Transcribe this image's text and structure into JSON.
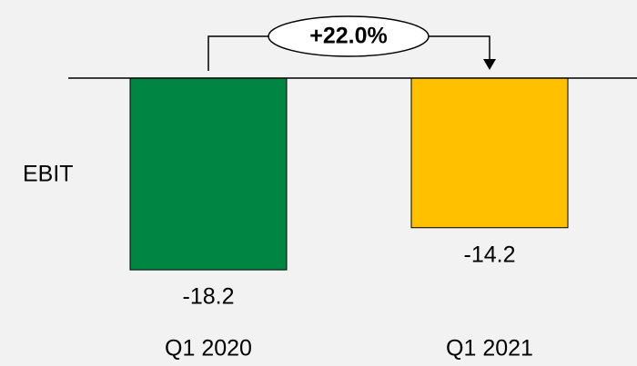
{
  "chart_data": {
    "type": "bar",
    "ylabel": "EBIT",
    "categories": [
      "Q1 2020",
      "Q1 2021"
    ],
    "values": [
      -18.2,
      -14.2
    ],
    "colors": [
      "#008542",
      "#ffc000"
    ],
    "annotation": "+22.0%"
  }
}
